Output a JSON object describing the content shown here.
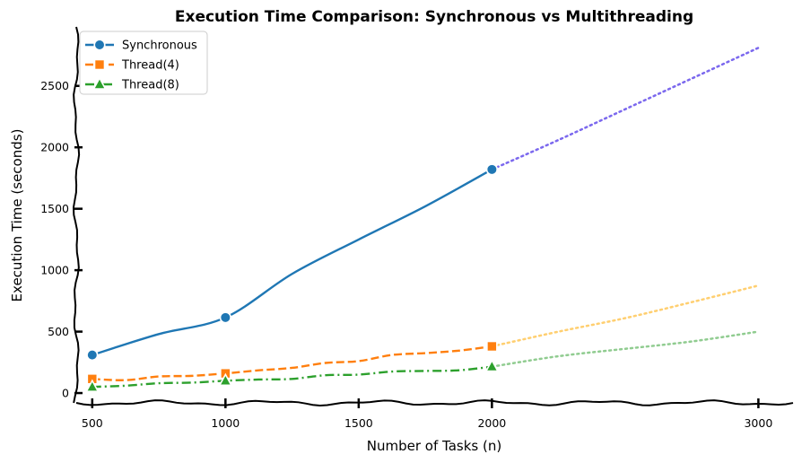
{
  "chart_data": {
    "type": "line",
    "title": "Execution Time Comparison: Synchronous vs Multithreading",
    "xlabel": "Number of Tasks (n)",
    "ylabel": "Execution Time (seconds)",
    "xlim": [
      440,
      3130
    ],
    "ylim": [
      -80,
      2980
    ],
    "xticks": [
      500,
      1000,
      1500,
      2000,
      3000
    ],
    "yticks": [
      0,
      500,
      1000,
      1500,
      2000,
      2500
    ],
    "grid": false,
    "legend_position": "top-left",
    "series": [
      {
        "name": "Synchronous",
        "color": "#1f77b4",
        "marker": "circle",
        "line_style": "solid",
        "x": [
          500,
          750,
          1000,
          1250,
          1500,
          1750,
          2000
        ],
        "y": [
          310,
          480,
          615,
          970,
          1250,
          1520,
          1820
        ],
        "markers_at": [
          500,
          1000,
          2000
        ],
        "projection": {
          "color": "#7b68ee",
          "x": [
            2000,
            2250,
            2500,
            2750,
            3000
          ],
          "y": [
            1820,
            2060,
            2310,
            2560,
            2810
          ]
        }
      },
      {
        "name": "Thread(4)",
        "color": "#ff7f0e",
        "marker": "square",
        "line_style": "dashed",
        "x": [
          500,
          625,
          750,
          875,
          1000,
          1125,
          1250,
          1375,
          1500,
          1625,
          1750,
          1875,
          2000
        ],
        "y": [
          115,
          105,
          135,
          140,
          160,
          185,
          205,
          245,
          260,
          310,
          325,
          345,
          380
        ],
        "markers_at": [
          500,
          1000,
          2000
        ],
        "projection": {
          "color": "#ffcf70",
          "x": [
            2000,
            2250,
            2500,
            2750,
            3000
          ],
          "y": [
            380,
            500,
            610,
            740,
            875
          ]
        }
      },
      {
        "name": "Thread(8)",
        "color": "#2ca02c",
        "marker": "triangle",
        "line_style": "dashdot",
        "x": [
          500,
          625,
          750,
          875,
          1000,
          1125,
          1250,
          1375,
          1500,
          1625,
          1750,
          1875,
          2000
        ],
        "y": [
          50,
          60,
          80,
          85,
          100,
          110,
          115,
          145,
          150,
          175,
          180,
          185,
          215
        ],
        "markers_at": [
          500,
          1000,
          2000
        ],
        "projection": {
          "color": "#90cc90",
          "x": [
            2000,
            2250,
            2500,
            2750,
            3000
          ],
          "y": [
            215,
            300,
            360,
            420,
            500
          ]
        }
      }
    ]
  }
}
